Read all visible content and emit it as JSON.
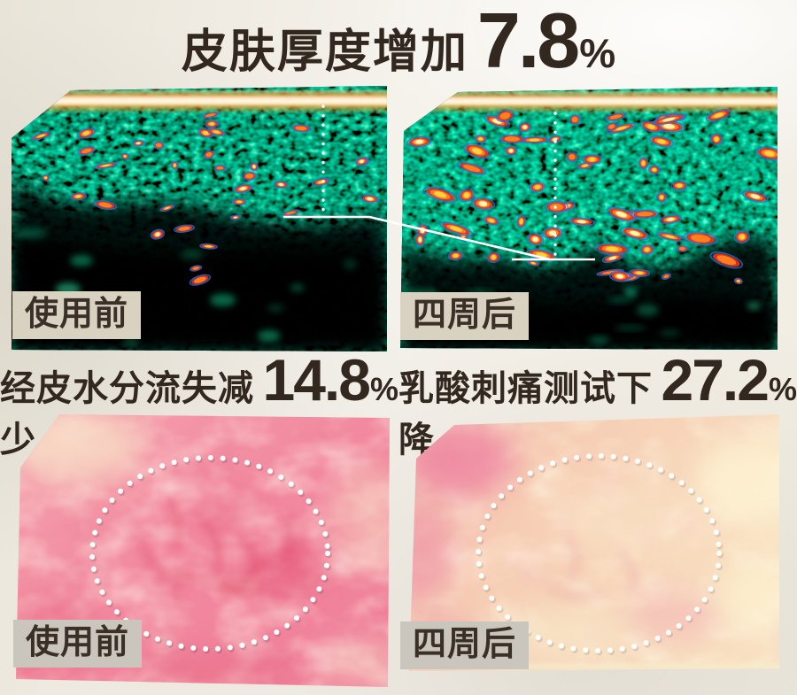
{
  "header": {
    "title": "皮肤厚度增加",
    "value": "7.8",
    "unit": "%"
  },
  "ultrasound_panels": {
    "before_label": "使用前",
    "after_label": "四周后"
  },
  "metrics": {
    "left": {
      "title": "经皮水分流失减少",
      "value": "14.8",
      "unit": "%"
    },
    "right": {
      "title": "乳酸刺痛测试下降",
      "value": "27.2",
      "unit": "%"
    }
  },
  "skin_panels": {
    "before_label": "使用前",
    "after_label": "四周后"
  },
  "colors": {
    "background": "#f3efe7",
    "text": "#32281f",
    "label_bg_top": "#d9d2c0",
    "label_bg_bottom": "#cac6bd",
    "ultrasound_green": "#0ca674",
    "hotspot_yellow": "#ffd23c",
    "hotspot_pale": "#fff3b0",
    "hotspot_orange": "#ff7f1f",
    "hotspot_red": "#e63122",
    "hotspot_outline_blue": "#2b6fd4",
    "skin_pink_before": "#f28aa0",
    "skin_pink_after": "#f6cdb4",
    "marker_white": "#ffffff"
  }
}
